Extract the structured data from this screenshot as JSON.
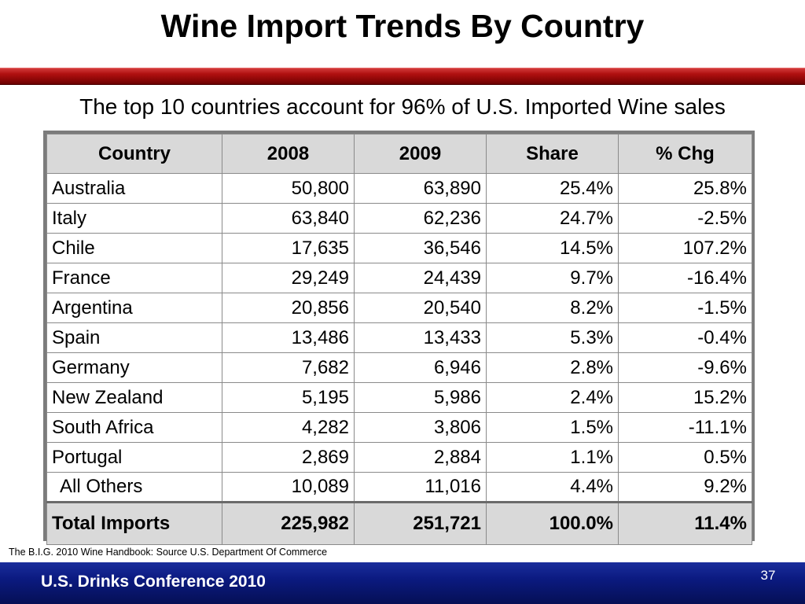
{
  "slide": {
    "title": "Wine Import Trends By Country",
    "subtitle": "The top 10 countries account for 96% of U.S. Imported Wine sales",
    "source": "The B.I.G. 2010 Wine Handbook:  Source U.S. Department Of Commerce",
    "footer": "U.S. Drinks Conference 2010",
    "page_number": "37",
    "colors": {
      "title_bar": "#8e0707",
      "footer_bar": "#0b1a80",
      "header_fill": "#d9d9d9"
    }
  },
  "table": {
    "headers": [
      "Country",
      "2008",
      "2009",
      "Share",
      "% Chg"
    ],
    "rows": [
      [
        "Australia",
        "50,800",
        "63,890",
        "25.4%",
        "25.8%"
      ],
      [
        "Italy",
        "63,840",
        "62,236",
        "24.7%",
        "-2.5%"
      ],
      [
        "Chile",
        "17,635",
        "36,546",
        "14.5%",
        "107.2%"
      ],
      [
        "France",
        "29,249",
        "24,439",
        "9.7%",
        "-16.4%"
      ],
      [
        "Argentina",
        "20,856",
        "20,540",
        "8.2%",
        "-1.5%"
      ],
      [
        "Spain",
        "13,486",
        "13,433",
        "5.3%",
        "-0.4%"
      ],
      [
        "Germany",
        "7,682",
        "6,946",
        "2.8%",
        "-9.6%"
      ],
      [
        "New Zealand",
        "5,195",
        "5,986",
        "2.4%",
        "15.2%"
      ],
      [
        "South Africa",
        "4,282",
        "3,806",
        "1.5%",
        "-11.1%"
      ],
      [
        "Portugal",
        "2,869",
        "2,884",
        "1.1%",
        "0.5%"
      ],
      [
        "All Others",
        "10,089",
        "11,016",
        "4.4%",
        "9.2%"
      ]
    ],
    "total": [
      "Total Imports",
      "225,982",
      "251,721",
      "100.0%",
      "11.4%"
    ]
  }
}
